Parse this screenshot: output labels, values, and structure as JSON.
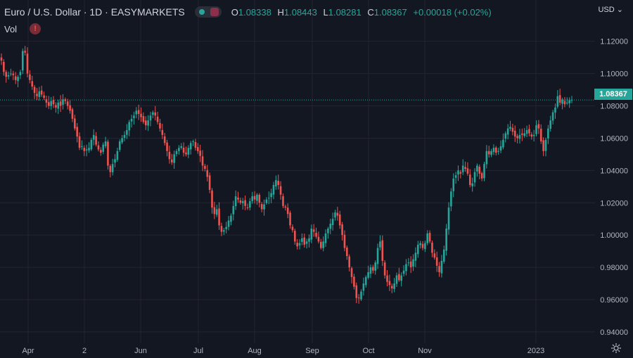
{
  "header": {
    "symbol": "Euro / U.S. Dollar · 1D · EASYMARKETS",
    "open_key": "O",
    "open": "1.08338",
    "high_key": "H",
    "high": "1.08443",
    "low_key": "L",
    "low": "1.08281",
    "close_key": "C",
    "close": "1.08367",
    "change": "+0.00018 (+0.02%)",
    "vol_label": "Vol",
    "warning_glyph": "!",
    "currency": "USD"
  },
  "colors": {
    "up": "#26a69a",
    "down": "#ef5350",
    "background": "#131722",
    "grid": "#232632"
  },
  "icons": {
    "settings": "gear-icon",
    "warning": "warning-icon",
    "currency_dropdown": "chevron-down-icon"
  },
  "chart_data": {
    "type": "candlestick",
    "title": "Euro / U.S. Dollar · 1D · EASYMARKETS",
    "ylim": [
      0.933,
      1.1325
    ],
    "y_ticks": [
      "1.12000",
      "1.10000",
      "1.08000",
      "1.06000",
      "1.04000",
      "1.02000",
      "1.00000",
      "0.98000",
      "0.96000",
      "0.94000"
    ],
    "x_ticks": [
      "Apr",
      "2",
      "Jun",
      "Jul",
      "Aug",
      "Sep",
      "Oct",
      "Nov",
      "2023"
    ],
    "last_price": "1.08367",
    "last_price_value": 1.08367,
    "grid": true,
    "closes": [
      1.108,
      1.101,
      1.098,
      1.099,
      1.1,
      1.099,
      1.096,
      1.098,
      1.101,
      1.114,
      1.113,
      1.1,
      1.096,
      1.092,
      1.088,
      1.086,
      1.089,
      1.087,
      1.085,
      1.082,
      1.08,
      1.083,
      1.081,
      1.079,
      1.082,
      1.08,
      1.084,
      1.083,
      1.08,
      1.077,
      1.072,
      1.066,
      1.061,
      1.054,
      1.055,
      1.052,
      1.053,
      1.054,
      1.059,
      1.062,
      1.056,
      1.053,
      1.051,
      1.056,
      1.058,
      1.043,
      1.039,
      1.044,
      1.047,
      1.052,
      1.058,
      1.06,
      1.062,
      1.065,
      1.07,
      1.072,
      1.074,
      1.077,
      1.075,
      1.073,
      1.07,
      1.068,
      1.071,
      1.074,
      1.076,
      1.074,
      1.07,
      1.066,
      1.062,
      1.057,
      1.052,
      1.047,
      1.045,
      1.05,
      1.052,
      1.054,
      1.055,
      1.051,
      1.05,
      1.054,
      1.057,
      1.058,
      1.054,
      1.052,
      1.049,
      1.043,
      1.041,
      1.036,
      1.028,
      1.017,
      1.013,
      1.016,
      1.006,
      1.002,
      1.003,
      1.005,
      1.009,
      1.012,
      1.018,
      1.024,
      1.022,
      1.02,
      1.021,
      1.018,
      1.017,
      1.021,
      1.024,
      1.022,
      1.025,
      1.02,
      1.016,
      1.019,
      1.022,
      1.023,
      1.026,
      1.031,
      1.034,
      1.031,
      1.025,
      1.018,
      1.017,
      1.013,
      1.006,
      1.003,
      0.996,
      0.993,
      0.995,
      0.998,
      0.994,
      0.996,
      0.998,
      1.004,
      1.002,
      0.999,
      0.996,
      0.992,
      0.996,
      1.001,
      1.004,
      1.007,
      1.01,
      1.014,
      1.012,
      1.006,
      1.0,
      0.992,
      0.987,
      0.98,
      0.974,
      0.968,
      0.961,
      0.961,
      0.965,
      0.97,
      0.974,
      0.977,
      0.98,
      0.978,
      0.983,
      0.992,
      0.996,
      0.984,
      0.975,
      0.971,
      0.969,
      0.967,
      0.97,
      0.975,
      0.972,
      0.975,
      0.978,
      0.982,
      0.983,
      0.98,
      0.985,
      0.989,
      0.994,
      0.995,
      0.992,
      0.995,
      1.001,
      0.996,
      0.989,
      0.986,
      0.981,
      0.977,
      0.984,
      0.991,
      1.004,
      1.017,
      1.027,
      1.035,
      1.037,
      1.04,
      1.038,
      1.043,
      1.041,
      1.038,
      1.031,
      1.032,
      1.039,
      1.043,
      1.038,
      1.035,
      1.044,
      1.052,
      1.05,
      1.052,
      1.054,
      1.051,
      1.052,
      1.055,
      1.059,
      1.063,
      1.066,
      1.067,
      1.064,
      1.061,
      1.06,
      1.062,
      1.062,
      1.063,
      1.065,
      1.063,
      1.061,
      1.062,
      1.068,
      1.066,
      1.058,
      1.052,
      1.059,
      1.066,
      1.071,
      1.076,
      1.079,
      1.086,
      1.082,
      1.084,
      1.081,
      1.082,
      1.0834,
      1.0837
    ]
  }
}
